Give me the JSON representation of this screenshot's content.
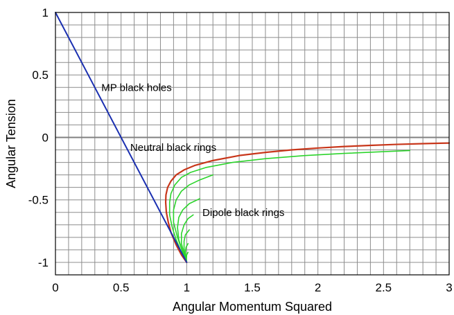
{
  "chart_data": {
    "type": "line",
    "xlabel": "Angular Momentum Squared",
    "ylabel": "Angular Tension",
    "xlim": [
      0,
      3
    ],
    "ylim": [
      -1.1,
      1
    ],
    "grid": true,
    "minor_grid_step_x": 0.1,
    "minor_grid_step_y": 0.1,
    "x_ticks": [
      0,
      0.5,
      1,
      1.5,
      2,
      2.5,
      3
    ],
    "x_tick_labels": [
      "0",
      "0.5",
      "1",
      "1.5",
      "2",
      "2.5",
      "3"
    ],
    "y_ticks": [
      1,
      0.5,
      0,
      -0.5,
      -1
    ],
    "y_tick_labels": [
      "1",
      "0.5",
      "0",
      "-0.5",
      "-1"
    ],
    "colors": {
      "mp": "#1a2fb0",
      "neutral": "#c8361a",
      "dipole": "#2bd42b",
      "zero_line": "#808080",
      "grid": "#8c8c8c",
      "frame": "#000000"
    },
    "reference_lines": [
      {
        "x": [
          0,
          3
        ],
        "y": [
          0,
          0
        ]
      }
    ],
    "series": [
      {
        "name": "MP black holes",
        "x": [
          0,
          1
        ],
        "y": [
          1,
          -1
        ]
      },
      {
        "name": "Neutral black rings",
        "x": [
          1.0,
          0.96,
          0.92,
          0.88,
          0.86,
          0.845,
          0.84,
          0.842,
          0.855,
          0.88,
          0.92,
          0.98,
          1.06,
          1.2,
          1.4,
          1.6,
          1.8,
          2.0,
          2.2,
          2.4,
          2.6,
          2.8,
          3.0
        ],
        "y": [
          -1.0,
          -0.94,
          -0.86,
          -0.76,
          -0.68,
          -0.6,
          -0.52,
          -0.46,
          -0.4,
          -0.35,
          -0.3,
          -0.26,
          -0.225,
          -0.185,
          -0.145,
          -0.12,
          -0.1,
          -0.085,
          -0.073,
          -0.064,
          -0.056,
          -0.05,
          -0.045
        ]
      },
      {
        "name": "Dipole black rings",
        "curves": [
          {
            "x": [
              1.0,
              0.96,
              0.92,
              0.89,
              0.87,
              0.87,
              0.88,
              0.91,
              0.96,
              1.03,
              1.15,
              1.35,
              1.6,
              1.9,
              2.2,
              2.5,
              2.7
            ],
            "y": [
              -1.0,
              -0.92,
              -0.82,
              -0.72,
              -0.62,
              -0.52,
              -0.45,
              -0.38,
              -0.32,
              -0.28,
              -0.24,
              -0.2,
              -0.17,
              -0.145,
              -0.128,
              -0.114,
              -0.105
            ]
          },
          {
            "x": [
              1.0,
              0.97,
              0.93,
              0.9,
              0.9,
              0.92,
              0.96,
              1.02,
              1.1,
              1.2
            ],
            "y": [
              -1.0,
              -0.92,
              -0.8,
              -0.68,
              -0.58,
              -0.5,
              -0.43,
              -0.38,
              -0.34,
              -0.3
            ]
          },
          {
            "x": [
              1.0,
              0.97,
              0.94,
              0.93,
              0.94,
              0.97,
              1.02,
              1.1
            ],
            "y": [
              -1.0,
              -0.92,
              -0.82,
              -0.72,
              -0.64,
              -0.58,
              -0.53,
              -0.49
            ]
          },
          {
            "x": [
              1.0,
              0.98,
              0.96,
              0.96,
              0.98,
              1.01,
              1.05
            ],
            "y": [
              -1.0,
              -0.93,
              -0.85,
              -0.77,
              -0.7,
              -0.65,
              -0.62
            ]
          },
          {
            "x": [
              1.0,
              0.99,
              0.98,
              0.98,
              0.99,
              1.02
            ],
            "y": [
              -1.0,
              -0.95,
              -0.89,
              -0.83,
              -0.78,
              -0.74
            ]
          },
          {
            "x": [
              1.0,
              0.995,
              0.99,
              0.995,
              1.01
            ],
            "y": [
              -1.0,
              -0.96,
              -0.92,
              -0.88,
              -0.85
            ]
          },
          {
            "x": [
              1.0,
              0.998,
              1.0,
              1.01
            ],
            "y": [
              -1.0,
              -0.97,
              -0.94,
              -0.92
            ]
          }
        ]
      }
    ],
    "annotations": [
      {
        "text": "MP black holes",
        "x": 0.35,
        "y": 0.4
      },
      {
        "text": "Neutral black rings",
        "x": 0.57,
        "y": -0.08
      },
      {
        "text": "Dipole black rings",
        "x": 1.12,
        "y": -0.6
      }
    ]
  }
}
